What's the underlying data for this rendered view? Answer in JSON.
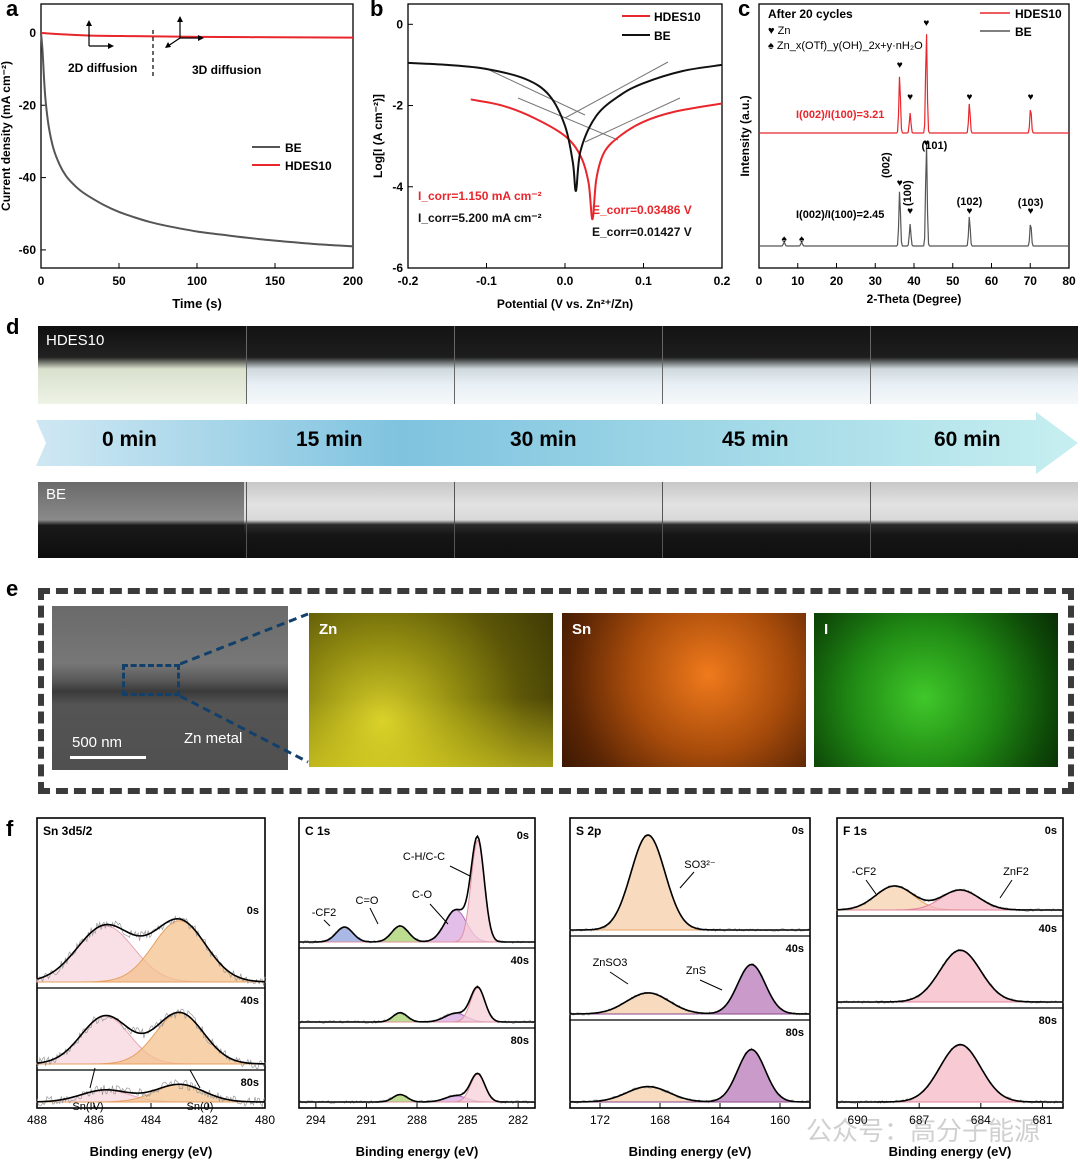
{
  "panels": {
    "a": "a",
    "b": "b",
    "c": "c",
    "d": "d",
    "e": "e",
    "f": "f"
  },
  "chart_data": [
    {
      "id": "a",
      "type": "line",
      "xlabel": "Time (s)",
      "ylabel": "Current density (mA cm⁻²)",
      "xlim": [
        0,
        200
      ],
      "ylim": [
        -65,
        8
      ],
      "xticks": [
        0,
        50,
        100,
        150,
        200
      ],
      "yticks": [
        0,
        -20,
        -40,
        -60
      ],
      "annotations": [
        "2D diffusion",
        "3D diffusion"
      ],
      "legend": "right",
      "series": [
        {
          "name": "BE",
          "color": "#555555",
          "x": [
            0,
            1,
            2,
            3,
            5,
            8,
            12,
            16,
            20,
            25,
            30,
            40,
            50,
            60,
            70,
            80,
            100,
            120,
            140,
            160,
            180,
            200
          ],
          "y": [
            0,
            -5,
            -13,
            -19,
            -26,
            -32,
            -36.5,
            -39.5,
            -41.5,
            -43.5,
            -45,
            -47.5,
            -49.5,
            -51,
            -52.3,
            -53.3,
            -54.9,
            -56,
            -57,
            -57.8,
            -58.5,
            -59
          ]
        },
        {
          "name": "HDES10",
          "color": "#e8262c",
          "x": [
            0,
            10,
            30,
            60,
            100,
            150,
            200
          ],
          "y": [
            0,
            -0.3,
            -0.7,
            -0.9,
            -1.1,
            -1.2,
            -1.3
          ]
        }
      ]
    },
    {
      "id": "b",
      "type": "line",
      "xlabel": "Potential (V vs. Zn²⁺/Zn)",
      "ylabel": "Log[I (A cm⁻²)]",
      "xlim": [
        -0.2,
        0.2
      ],
      "ylim": [
        -6,
        0.5
      ],
      "xticks": [
        -0.2,
        -0.1,
        0.0,
        0.1,
        0.2
      ],
      "yticks": [
        0,
        -2,
        -4,
        -6
      ],
      "legend": "top-right",
      "series": [
        {
          "name": "HDES10",
          "color": "#e8262c",
          "x": [
            -0.12,
            -0.08,
            -0.04,
            0.0,
            0.02,
            0.03,
            0.035,
            0.04,
            0.05,
            0.07,
            0.1,
            0.14,
            0.2
          ],
          "y": [
            -1.85,
            -2.0,
            -2.3,
            -2.75,
            -3.25,
            -3.9,
            -4.8,
            -3.8,
            -3.15,
            -2.75,
            -2.4,
            -2.15,
            -1.95
          ]
        },
        {
          "name": "BE",
          "color": "#111111",
          "x": [
            -0.2,
            -0.15,
            -0.1,
            -0.05,
            -0.02,
            0.0,
            0.01,
            0.014,
            0.02,
            0.04,
            0.07,
            0.1,
            0.15,
            0.2
          ],
          "y": [
            -0.95,
            -1.0,
            -1.1,
            -1.35,
            -1.75,
            -2.5,
            -3.4,
            -4.1,
            -3.1,
            -2.25,
            -1.75,
            -1.45,
            -1.15,
            -1.0
          ]
        }
      ],
      "annotations": {
        "red": [
          "I_corr=1.150 mA cm⁻²",
          "E_corr=0.03486 V"
        ],
        "black": [
          "I_corr=5.200 mA cm⁻²",
          "E_corr=0.01427 V"
        ]
      }
    },
    {
      "id": "c",
      "type": "line",
      "title": "After 20 cycles",
      "xlabel": "2-Theta (Degree)",
      "ylabel": "Intensity (a.u.)",
      "xlim": [
        0,
        80
      ],
      "xticks": [
        0,
        10,
        20,
        30,
        40,
        50,
        60,
        70,
        80
      ],
      "legend": "top-right",
      "marker_legend": [
        "Zn",
        "Zn_x(OTf)_y(OH)_2x+y·nH₂O"
      ],
      "series": [
        {
          "name": "HDES10",
          "color": "#e8262c",
          "peaks_2theta": [
            36.3,
            39.0,
            43.2,
            54.3,
            70.1
          ],
          "ratio_label": "I(002)/I(100)=3.21"
        },
        {
          "name": "BE",
          "color": "#555555",
          "peaks_2theta": [
            6.5,
            11.0,
            36.3,
            39.0,
            43.2,
            54.3,
            70.1
          ],
          "ratio_label": "I(002)/I(100)=2.45",
          "peak_labels": [
            "(002)",
            "(100)",
            "(101)",
            "(102)",
            "(103)"
          ]
        }
      ]
    },
    {
      "id": "f",
      "type": "line",
      "xlabel": "Binding energy (eV)",
      "subplots": [
        {
          "title": "Sn 3d5/2",
          "xlim": [
            488,
            480
          ],
          "xticks": [
            488,
            486,
            484,
            482,
            480
          ],
          "times": [
            "0s",
            "40s",
            "80s"
          ],
          "components": [
            "Sn(IV)",
            "Sn(0)"
          ],
          "peaks_eV": [
            485.6,
            483.0
          ]
        },
        {
          "title": "C 1s",
          "xlim": [
            295,
            281
          ],
          "xticks": [
            294,
            291,
            288,
            285,
            282
          ],
          "times": [
            "0s",
            "40s",
            "80s"
          ],
          "components": [
            "-CF2",
            "C=O",
            "C-O",
            "C-H/C-C"
          ],
          "peaks_eV": [
            292.3,
            289.0,
            285.7,
            284.4
          ]
        },
        {
          "title": "S 2p",
          "xlim": [
            174,
            158
          ],
          "xticks": [
            172,
            168,
            164,
            160
          ],
          "times": [
            "0s",
            "40s",
            "80s"
          ],
          "components": [
            "SO3²⁻",
            "ZnSO3",
            "ZnS"
          ],
          "peaks_eV": [
            168.8,
            168.8,
            161.9
          ]
        },
        {
          "title": "F 1s",
          "xlim": [
            691,
            680
          ],
          "xticks": [
            690,
            687,
            684,
            681
          ],
          "times": [
            "0s",
            "40s",
            "80s"
          ],
          "components": [
            "-CF2",
            "ZnF2"
          ],
          "peaks_eV": [
            688.2,
            685.0
          ]
        }
      ]
    }
  ],
  "panel_d": {
    "top_label": "HDES10",
    "bottom_label": "BE",
    "timeline": [
      "0 min",
      "15 min",
      "30 min",
      "45 min",
      "60 min"
    ]
  },
  "panel_e": {
    "scale_bar": "500 nm",
    "sem_label": "Zn metal",
    "maps": [
      "Zn",
      "Sn",
      "I"
    ]
  },
  "watermark": "公众号：高分子能源"
}
